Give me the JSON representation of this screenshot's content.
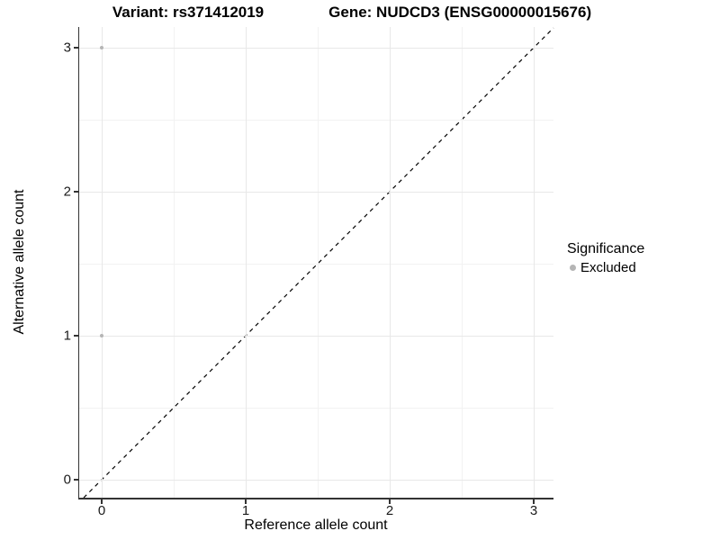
{
  "title": {
    "variant": "Variant: rs371412019",
    "gene": "Gene: NUDCD3 (ENSG00000015676)"
  },
  "axes": {
    "x_label": "Reference allele count",
    "y_label": "Alternative allele count"
  },
  "legend": {
    "title": "Significance",
    "items": [
      {
        "label": "Excluded",
        "color": "#b5b5b5"
      }
    ]
  },
  "colors": {
    "background": "#ffffff",
    "axis_line": "#333333",
    "grid_major": "#e8e8e8",
    "grid_minor": "#f2f2f2",
    "point": "#b5b5b5",
    "reference_line": "#000000"
  },
  "chart_data": {
    "type": "scatter",
    "title": "Variant: rs371412019   Gene: NUDCD3 (ENSG00000015676)",
    "xlabel": "Reference allele count",
    "ylabel": "Alternative allele count",
    "xlim": [
      -0.15625,
      3.1375
    ],
    "ylim": [
      -0.125,
      3.14375
    ],
    "x_ticks": [
      0,
      1,
      2,
      3
    ],
    "y_ticks": [
      0,
      1,
      2,
      3
    ],
    "x_minor_ticks": [
      0.5,
      1.5,
      2.5
    ],
    "y_minor_ticks": [
      0.5,
      1.5,
      2.5
    ],
    "grid": true,
    "legend_position": "right",
    "series": [
      {
        "name": "Excluded",
        "color": "#b5b5b5",
        "point_radius": 2.4,
        "points": [
          {
            "x": 0,
            "y": 3
          },
          {
            "x": 0,
            "y": 1
          }
        ]
      }
    ],
    "reference_line": {
      "slope": 1,
      "intercept": 0,
      "style": "dashed",
      "color": "#000000"
    }
  }
}
